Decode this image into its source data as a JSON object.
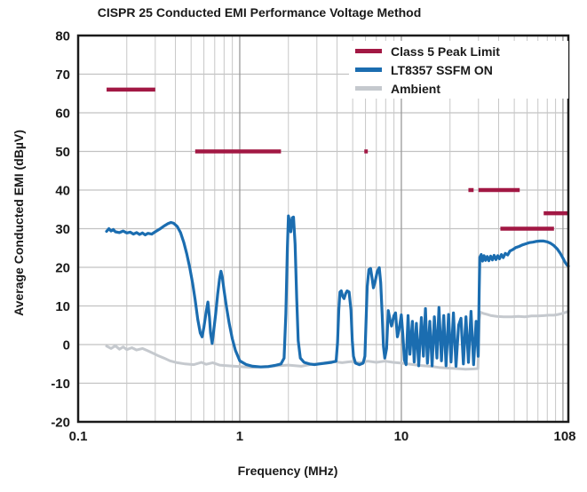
{
  "chart_data": {
    "type": "line",
    "title": "CISPR 25 Conducted EMI Performance Voltage Method",
    "xlabel": "Frequency (MHz)",
    "ylabel": "Average Conducted EMI (dBµV)",
    "x_scale": "log",
    "xlim": [
      0.1,
      108
    ],
    "ylim": [
      -20,
      80
    ],
    "x_tick_labels": [
      {
        "value": 0.1,
        "label": "0.1"
      },
      {
        "value": 1,
        "label": "1"
      },
      {
        "value": 10,
        "label": "10"
      },
      {
        "value": 108,
        "label": "108"
      }
    ],
    "y_ticks": [
      -20,
      -10,
      0,
      10,
      20,
      30,
      40,
      50,
      60,
      70,
      80
    ],
    "grid": true,
    "colors": {
      "limit": "#A21844",
      "ssfm_on": "#1B6DB0",
      "ambient": "#C5C9CE",
      "grid_minor": "#c7c7c7",
      "grid_major": "#999999",
      "border": "#1a1a1a"
    },
    "legend": {
      "position": "top-right",
      "entries": [
        {
          "name": "Class 5 Peak Limit",
          "color": "#A21844"
        },
        {
          "name": "LT8357 SSFM ON",
          "color": "#1B6DB0"
        },
        {
          "name": "Ambient",
          "color": "#C5C9CE"
        }
      ]
    },
    "limit_series": {
      "name": "Class 5 Peak Limit",
      "unit": "dBµV",
      "color": "#A21844",
      "segments": [
        {
          "band_mhz": [
            0.15,
            0.3
          ],
          "level": 66
        },
        {
          "band_mhz": [
            0.53,
            1.8
          ],
          "level": 50
        },
        {
          "band_mhz": [
            5.9,
            6.2
          ],
          "level": 50
        },
        {
          "band_mhz": [
            26,
            28
          ],
          "level": 40
        },
        {
          "band_mhz": [
            30,
            54
          ],
          "level": 40
        },
        {
          "band_mhz": [
            41,
            88
          ],
          "level": 30
        },
        {
          "band_mhz": [
            76,
            108
          ],
          "level": 34
        }
      ]
    },
    "series": [
      {
        "name": "LT8357 SSFM ON",
        "color": "#1B6DB0",
        "points": [
          [
            0.15,
            29.3
          ],
          [
            0.155,
            30.0
          ],
          [
            0.16,
            29.4
          ],
          [
            0.165,
            29.8
          ],
          [
            0.17,
            29.2
          ],
          [
            0.18,
            29.0
          ],
          [
            0.19,
            29.4
          ],
          [
            0.2,
            28.9
          ],
          [
            0.21,
            29.1
          ],
          [
            0.22,
            28.6
          ],
          [
            0.23,
            29.0
          ],
          [
            0.24,
            28.5
          ],
          [
            0.25,
            28.9
          ],
          [
            0.26,
            28.4
          ],
          [
            0.27,
            28.8
          ],
          [
            0.285,
            28.6
          ],
          [
            0.3,
            29.2
          ],
          [
            0.32,
            29.9
          ],
          [
            0.34,
            30.7
          ],
          [
            0.36,
            31.3
          ],
          [
            0.375,
            31.6
          ],
          [
            0.39,
            31.4
          ],
          [
            0.41,
            30.6
          ],
          [
            0.43,
            29.0
          ],
          [
            0.45,
            26.5
          ],
          [
            0.47,
            23.5
          ],
          [
            0.49,
            20.0
          ],
          [
            0.51,
            16.0
          ],
          [
            0.53,
            11.5
          ],
          [
            0.55,
            6.5
          ],
          [
            0.57,
            3.0
          ],
          [
            0.585,
            2.0
          ],
          [
            0.6,
            4.5
          ],
          [
            0.62,
            8.5
          ],
          [
            0.635,
            11.0
          ],
          [
            0.65,
            7.0
          ],
          [
            0.66,
            3.0
          ],
          [
            0.675,
            0.3
          ],
          [
            0.69,
            3.5
          ],
          [
            0.71,
            8.0
          ],
          [
            0.73,
            13.0
          ],
          [
            0.75,
            17.0
          ],
          [
            0.765,
            19.0
          ],
          [
            0.78,
            17.5
          ],
          [
            0.8,
            14.0
          ],
          [
            0.83,
            9.5
          ],
          [
            0.86,
            5.5
          ],
          [
            0.9,
            1.5
          ],
          [
            0.94,
            -1.5
          ],
          [
            1.0,
            -4.2
          ],
          [
            1.1,
            -5.2
          ],
          [
            1.2,
            -5.6
          ],
          [
            1.35,
            -5.8
          ],
          [
            1.5,
            -5.7
          ],
          [
            1.65,
            -5.4
          ],
          [
            1.8,
            -5.0
          ],
          [
            1.88,
            -3.5
          ],
          [
            1.93,
            8.0
          ],
          [
            1.97,
            25.0
          ],
          [
            2.0,
            33.3
          ],
          [
            2.04,
            31.5
          ],
          [
            2.07,
            29.2
          ],
          [
            2.11,
            32.8
          ],
          [
            2.15,
            33.0
          ],
          [
            2.2,
            26.0
          ],
          [
            2.25,
            12.0
          ],
          [
            2.3,
            1.0
          ],
          [
            2.37,
            -3.5
          ],
          [
            2.5,
            -4.6
          ],
          [
            2.7,
            -5.0
          ],
          [
            2.9,
            -5.2
          ],
          [
            3.1,
            -5.0
          ],
          [
            3.4,
            -4.8
          ],
          [
            3.7,
            -4.6
          ],
          [
            3.95,
            -4.3
          ],
          [
            4.03,
            0.5
          ],
          [
            4.1,
            9.0
          ],
          [
            4.17,
            13.6
          ],
          [
            4.25,
            13.9
          ],
          [
            4.33,
            12.5
          ],
          [
            4.42,
            11.9
          ],
          [
            4.52,
            13.2
          ],
          [
            4.62,
            13.9
          ],
          [
            4.75,
            13.6
          ],
          [
            4.88,
            9.0
          ],
          [
            4.97,
            1.0
          ],
          [
            5.05,
            -3.0
          ],
          [
            5.2,
            -4.8
          ],
          [
            5.5,
            -5.2
          ],
          [
            5.8,
            -4.8
          ],
          [
            5.95,
            -3.0
          ],
          [
            6.05,
            6.0
          ],
          [
            6.15,
            15.0
          ],
          [
            6.3,
            19.4
          ],
          [
            6.45,
            19.7
          ],
          [
            6.6,
            17.0
          ],
          [
            6.72,
            14.7
          ],
          [
            6.9,
            16.5
          ],
          [
            7.1,
            19.0
          ],
          [
            7.3,
            19.9
          ],
          [
            7.45,
            16.0
          ],
          [
            7.6,
            8.0
          ],
          [
            7.75,
            -0.5
          ],
          [
            7.9,
            -3.5
          ],
          [
            8.1,
            -1.0
          ],
          [
            8.3,
            8.8
          ],
          [
            8.5,
            6.5
          ],
          [
            8.7,
            4.8
          ],
          [
            9.0,
            7.5
          ],
          [
            9.2,
            8.2
          ],
          [
            9.45,
            2.0
          ],
          [
            9.7,
            4.0
          ],
          [
            10.0,
            7.7
          ],
          [
            10.2,
            3.0
          ],
          [
            10.45,
            -4.0
          ],
          [
            10.7,
            -5.2
          ],
          [
            11.0,
            7.5
          ],
          [
            11.3,
            -2.5
          ],
          [
            11.7,
            6.0
          ],
          [
            12.0,
            -4.5
          ],
          [
            12.4,
            5.5
          ],
          [
            12.8,
            -5.5
          ],
          [
            13.3,
            7.0
          ],
          [
            13.7,
            -3.0
          ],
          [
            14.1,
            9.3
          ],
          [
            14.5,
            -4.8
          ],
          [
            15.0,
            6.0
          ],
          [
            15.5,
            -5.5
          ],
          [
            16.0,
            7.2
          ],
          [
            16.6,
            -3.5
          ],
          [
            17.1,
            9.6
          ],
          [
            17.7,
            -4.2
          ],
          [
            18.3,
            7.5
          ],
          [
            18.9,
            -5.5
          ],
          [
            19.6,
            7.8
          ],
          [
            20.3,
            -4.5
          ],
          [
            21.0,
            8.2
          ],
          [
            21.8,
            -5.6
          ],
          [
            22.6,
            5.0
          ],
          [
            23.4,
            6.8
          ],
          [
            24.2,
            -5.0
          ],
          [
            25.1,
            7.2
          ],
          [
            26.0,
            -4.6
          ],
          [
            27.0,
            8.6
          ],
          [
            28.0,
            -5.2
          ],
          [
            29.0,
            6.0
          ],
          [
            29.9,
            -3.0
          ],
          [
            30.3,
            14.0
          ],
          [
            30.6,
            22.6
          ],
          [
            31.2,
            23.3
          ],
          [
            31.8,
            21.6
          ],
          [
            32.5,
            23.0
          ],
          [
            33.2,
            21.8
          ],
          [
            34.0,
            22.8
          ],
          [
            34.8,
            21.7
          ],
          [
            35.7,
            22.9
          ],
          [
            36.6,
            21.9
          ],
          [
            37.5,
            23.1
          ],
          [
            38.5,
            22.0
          ],
          [
            39.5,
            23.0
          ],
          [
            40.5,
            22.2
          ],
          [
            41.6,
            23.3
          ],
          [
            42.7,
            22.5
          ],
          [
            44.0,
            23.6
          ],
          [
            45.5,
            23.2
          ],
          [
            47.0,
            24.2
          ],
          [
            49.0,
            24.6
          ],
          [
            51.0,
            25.1
          ],
          [
            53.5,
            25.4
          ],
          [
            56.0,
            25.8
          ],
          [
            59.0,
            26.1
          ],
          [
            62.0,
            26.4
          ],
          [
            65.0,
            26.5
          ],
          [
            68.0,
            26.7
          ],
          [
            72.0,
            26.8
          ],
          [
            76.0,
            26.8
          ],
          [
            80.0,
            26.6
          ],
          [
            84.0,
            26.2
          ],
          [
            88.0,
            25.6
          ],
          [
            92.0,
            24.8
          ],
          [
            96.0,
            23.7
          ],
          [
            100.0,
            22.4
          ],
          [
            103.0,
            21.3
          ],
          [
            106.0,
            20.6
          ],
          [
            108.0,
            20.3
          ]
        ]
      },
      {
        "name": "Ambient",
        "color": "#C5C9CE",
        "points": [
          [
            0.15,
            -0.4
          ],
          [
            0.16,
            -1.0
          ],
          [
            0.17,
            -0.3
          ],
          [
            0.18,
            -1.2
          ],
          [
            0.19,
            -0.6
          ],
          [
            0.2,
            -1.3
          ],
          [
            0.215,
            -0.8
          ],
          [
            0.23,
            -1.4
          ],
          [
            0.25,
            -1.0
          ],
          [
            0.27,
            -1.6
          ],
          [
            0.29,
            -2.2
          ],
          [
            0.31,
            -2.8
          ],
          [
            0.34,
            -3.5
          ],
          [
            0.37,
            -4.2
          ],
          [
            0.41,
            -4.7
          ],
          [
            0.46,
            -5.0
          ],
          [
            0.52,
            -5.2
          ],
          [
            0.58,
            -4.6
          ],
          [
            0.62,
            -5.1
          ],
          [
            0.68,
            -4.7
          ],
          [
            0.75,
            -5.3
          ],
          [
            0.85,
            -5.5
          ],
          [
            1.0,
            -5.7
          ],
          [
            1.2,
            -5.9
          ],
          [
            1.4,
            -5.7
          ],
          [
            1.7,
            -5.5
          ],
          [
            2.0,
            -5.3
          ],
          [
            2.4,
            -5.6
          ],
          [
            2.8,
            -5.1
          ],
          [
            3.3,
            -4.8
          ],
          [
            3.8,
            -4.4
          ],
          [
            4.3,
            -4.7
          ],
          [
            4.9,
            -4.4
          ],
          [
            5.5,
            -4.7
          ],
          [
            6.2,
            -4.3
          ],
          [
            7.0,
            -4.6
          ],
          [
            7.9,
            -4.3
          ],
          [
            8.9,
            -4.6
          ],
          [
            10.0,
            -4.8
          ],
          [
            11.5,
            -5.1
          ],
          [
            13.0,
            -5.4
          ],
          [
            15.0,
            -5.6
          ],
          [
            17.0,
            -5.9
          ],
          [
            19.5,
            -6.1
          ],
          [
            22.0,
            -6.2
          ],
          [
            25.0,
            -6.4
          ],
          [
            28.0,
            -6.3
          ],
          [
            29.8,
            -6.2
          ],
          [
            30.4,
            6.5
          ],
          [
            30.8,
            8.4
          ],
          [
            32.0,
            8.1
          ],
          [
            34.0,
            7.8
          ],
          [
            36.0,
            7.5
          ],
          [
            39.0,
            7.3
          ],
          [
            43.0,
            7.2
          ],
          [
            48.0,
            7.2
          ],
          [
            53.0,
            7.3
          ],
          [
            58.0,
            7.2
          ],
          [
            64.0,
            7.4
          ],
          [
            70.0,
            7.4
          ],
          [
            76.0,
            7.5
          ],
          [
            82.0,
            7.6
          ],
          [
            88.0,
            7.6
          ],
          [
            93.0,
            7.8
          ],
          [
            98.0,
            8.0
          ],
          [
            103.0,
            8.3
          ],
          [
            108.0,
            8.6
          ]
        ]
      }
    ]
  }
}
